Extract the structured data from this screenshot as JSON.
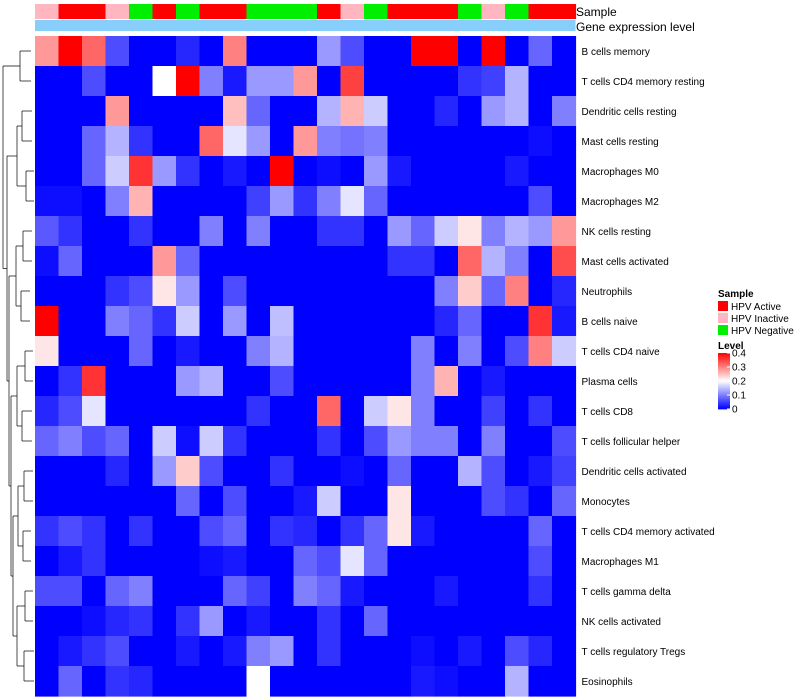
{
  "chart_data": {
    "type": "heatmap",
    "title": "",
    "annotation_labels": {
      "sample": "Sample",
      "gene": "Gene expression level"
    },
    "sample_groups": [
      "I",
      "A",
      "A",
      "I",
      "N",
      "A",
      "N",
      "A",
      "A",
      "N",
      "N",
      "N",
      "A",
      "I",
      "N",
      "A",
      "A",
      "A",
      "N",
      "I",
      "N",
      "A",
      "A"
    ],
    "rows": [
      "B cells memory",
      "T cells CD4 memory resting",
      "Dendritic cells resting",
      "Mast cells resting",
      "Macrophages M0",
      "Macrophages M2",
      "NK cells resting",
      "Mast cells activated",
      "Neutrophils",
      "B cells naive",
      "T cells CD4 naive",
      "Plasma cells",
      "T cells CD8",
      "T cells follicular helper",
      "Dendritic cells activated",
      "Monocytes",
      "T cells CD4 memory activated",
      "Macrophages M1",
      "T cells gamma delta",
      "NK cells activated",
      "T cells regulatory  Tregs",
      "Eosinophils"
    ],
    "values": [
      [
        0.28,
        0.4,
        0.32,
        0.06,
        0,
        0,
        0.03,
        0,
        0.3,
        0,
        0,
        0,
        0.12,
        0.06,
        0,
        0,
        0.4,
        0.4,
        0,
        0.4,
        0,
        0.08,
        0
      ],
      [
        0,
        0,
        0.06,
        0,
        0,
        0.2,
        0.4,
        0.1,
        0.02,
        0.12,
        0.12,
        0.28,
        0,
        0.35,
        0,
        0,
        0,
        0,
        0.04,
        0.05,
        0.14,
        0,
        0
      ],
      [
        0,
        0,
        0,
        0.28,
        0,
        0,
        0,
        0,
        0.25,
        0.08,
        0,
        0,
        0.14,
        0.26,
        0.16,
        0,
        0,
        0.03,
        0,
        0.12,
        0.14,
        0,
        0.1
      ],
      [
        0,
        0,
        0.08,
        0.14,
        0.04,
        0,
        0,
        0.32,
        0.18,
        0.12,
        0,
        0.28,
        0.1,
        0.09,
        0.1,
        0,
        0,
        0,
        0,
        0,
        0,
        0.01,
        0
      ],
      [
        0,
        0,
        0.08,
        0.16,
        0.36,
        0.12,
        0.04,
        0,
        0.02,
        0,
        0.4,
        0,
        0.01,
        0,
        0.12,
        0.02,
        0,
        0,
        0,
        0,
        0.02,
        0,
        0
      ],
      [
        0.01,
        0.01,
        0,
        0.1,
        0.26,
        0,
        0,
        0,
        0,
        0.05,
        0.12,
        0.04,
        0.1,
        0.18,
        0.08,
        0,
        0,
        0,
        0,
        0,
        0,
        0.06,
        0
      ],
      [
        0.07,
        0.04,
        0,
        0,
        0.04,
        0,
        0,
        0.1,
        0,
        0.1,
        0,
        0,
        0.04,
        0.04,
        0,
        0.12,
        0.08,
        0.16,
        0.22,
        0.1,
        0.14,
        0.12,
        0.28
      ],
      [
        0.01,
        0.08,
        0,
        0,
        0,
        0.28,
        0.08,
        0,
        0,
        0,
        0,
        0,
        0,
        0,
        0,
        0.04,
        0.04,
        0,
        0.32,
        0.14,
        0.1,
        0,
        0.34
      ],
      [
        0,
        0,
        0,
        0.04,
        0.06,
        0.22,
        0.12,
        0,
        0.06,
        0,
        0,
        0,
        0,
        0,
        0,
        0,
        0,
        0.1,
        0.24,
        0.08,
        0.3,
        0,
        0.03
      ],
      [
        0.4,
        0,
        0,
        0.1,
        0.08,
        0.04,
        0.16,
        0,
        0.12,
        0,
        0.15,
        0,
        0,
        0,
        0,
        0,
        0,
        0.03,
        0.08,
        0,
        0,
        0.36,
        0.02
      ],
      [
        0.22,
        0,
        0,
        0,
        0.08,
        0,
        0.02,
        0,
        0,
        0.1,
        0.14,
        0,
        0,
        0,
        0,
        0,
        0.1,
        0,
        0.1,
        0,
        0.06,
        0.3,
        0.16
      ],
      [
        0,
        0.04,
        0.36,
        0,
        0,
        0,
        0.12,
        0.14,
        0,
        0,
        0.06,
        0,
        0,
        0,
        0,
        0,
        0.1,
        0.26,
        0,
        0.02,
        0,
        0,
        0
      ],
      [
        0.03,
        0.06,
        0.18,
        0,
        0,
        0,
        0,
        0,
        0,
        0.04,
        0,
        0,
        0.32,
        0,
        0.16,
        0.22,
        0.1,
        0,
        0,
        0.05,
        0,
        0.04,
        0
      ],
      [
        0.08,
        0.1,
        0.06,
        0.08,
        0,
        0.16,
        0.01,
        0.16,
        0.04,
        0,
        0,
        0,
        0.04,
        0,
        0.06,
        0.12,
        0.1,
        0.1,
        0,
        0.1,
        0,
        0,
        0.06
      ],
      [
        0,
        0,
        0,
        0.03,
        0,
        0.12,
        0.24,
        0.06,
        0,
        0,
        0.04,
        0,
        0,
        0.01,
        0,
        0.08,
        0,
        0,
        0.14,
        0.06,
        0,
        0.02,
        0.05
      ],
      [
        0,
        0,
        0,
        0,
        0,
        0,
        0.08,
        0,
        0.06,
        0,
        0,
        0.02,
        0.16,
        0,
        0,
        0.22,
        0,
        0,
        0,
        0.06,
        0.04,
        0,
        0.08
      ],
      [
        0.04,
        0.06,
        0.04,
        0,
        0.04,
        0,
        0,
        0.06,
        0.08,
        0,
        0.04,
        0.03,
        0,
        0.04,
        0.08,
        0.22,
        0.02,
        0,
        0,
        0,
        0,
        0.08,
        0
      ],
      [
        0,
        0.02,
        0.04,
        0,
        0,
        0,
        0,
        0.01,
        0.02,
        0,
        0,
        0.08,
        0.06,
        0.18,
        0.08,
        0,
        0,
        0,
        0,
        0,
        0,
        0.06,
        0
      ],
      [
        0.06,
        0.06,
        0,
        0.08,
        0.1,
        0,
        0,
        0,
        0.08,
        0.05,
        0,
        0.1,
        0.08,
        0.02,
        0,
        0,
        0,
        0.02,
        0,
        0,
        0,
        0.04,
        0
      ],
      [
        0,
        0,
        0.01,
        0.03,
        0.04,
        0,
        0.04,
        0.12,
        0,
        0.02,
        0,
        0,
        0.04,
        0,
        0.08,
        0,
        0,
        0,
        0,
        0,
        0,
        0,
        0
      ],
      [
        0,
        0.02,
        0.04,
        0.06,
        0,
        0,
        0.02,
        0,
        0.02,
        0.1,
        0.12,
        0,
        0.04,
        0,
        0,
        0,
        0.01,
        0,
        0.02,
        0,
        0.06,
        0.03,
        0
      ],
      [
        0,
        0.08,
        0,
        0.04,
        0.03,
        0,
        0,
        0,
        0,
        0.2,
        0,
        0,
        0,
        0,
        0,
        0,
        0.02,
        0.01,
        0,
        0,
        0.14,
        0,
        0
      ]
    ],
    "legend": {
      "sample_title": "Sample",
      "sample_entries": [
        {
          "key": "A",
          "label": "HPV Active",
          "color": "#ff0000"
        },
        {
          "key": "I",
          "label": "HPV Inactive",
          "color": "#ffb6c1"
        },
        {
          "key": "N",
          "label": "HPV Negative",
          "color": "#00ee00"
        }
      ],
      "level_title": "Level",
      "level_range": [
        0,
        0.4
      ],
      "level_ticks": [
        0.4,
        0.3,
        0.2,
        0.1,
        0
      ],
      "level_tick_labels": [
        "0.4",
        "0.3",
        "0.2",
        "0.1",
        "0"
      ],
      "placement": "right"
    },
    "colors": {
      "low": "#0000ff",
      "mid": "#ffffff",
      "high": "#ff0000",
      "gene_bar": "#87cefa"
    }
  }
}
